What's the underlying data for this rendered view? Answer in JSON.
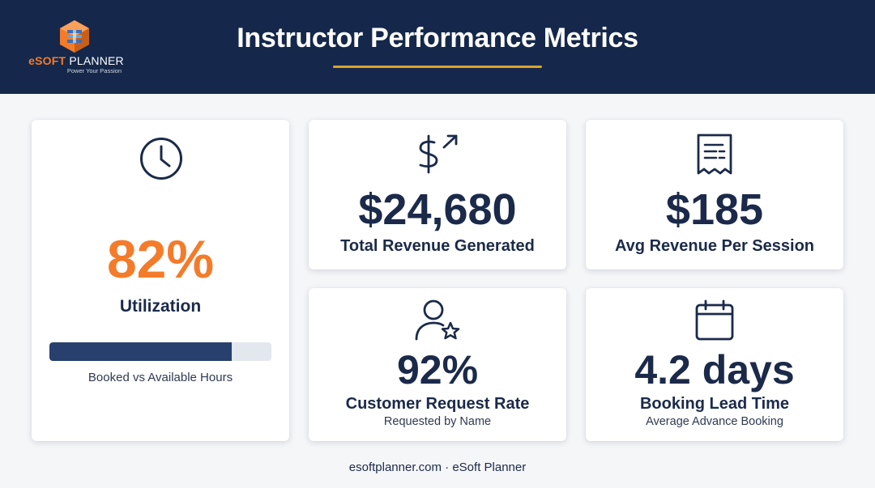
{
  "header": {
    "title": "Instructor Performance Metrics",
    "logo": {
      "brand_accent": "eSOFT",
      "brand_rest": " PLANNER",
      "tagline": "Power Your Passion"
    }
  },
  "colors": {
    "navy": "#15284b",
    "orange": "#f47b2a",
    "gold": "#d9a42e",
    "bar_fill": "#27406e",
    "bar_track": "#e3e7ee"
  },
  "cards": {
    "utilization": {
      "icon": "clock-icon",
      "value": "82%",
      "label": "Utilization",
      "progress": 0.82,
      "caption": "Booked vs Available Hours"
    },
    "revenue": {
      "icon": "dollar-trend-icon",
      "value": "$24,680",
      "label": "Total Revenue Generated"
    },
    "avg_revenue": {
      "icon": "receipt-icon",
      "value": "$185",
      "label": "Avg Revenue Per Session"
    },
    "request_rate": {
      "icon": "user-star-icon",
      "value": "92%",
      "label": "Customer Request Rate",
      "sub": "Requested by Name"
    },
    "lead_time": {
      "icon": "calendar-icon",
      "value": "4.2 days",
      "label": "Booking Lead Time",
      "sub": "Average Advance Booking"
    }
  },
  "footer": {
    "text": "esoftplanner.com · eSoft Planner"
  }
}
